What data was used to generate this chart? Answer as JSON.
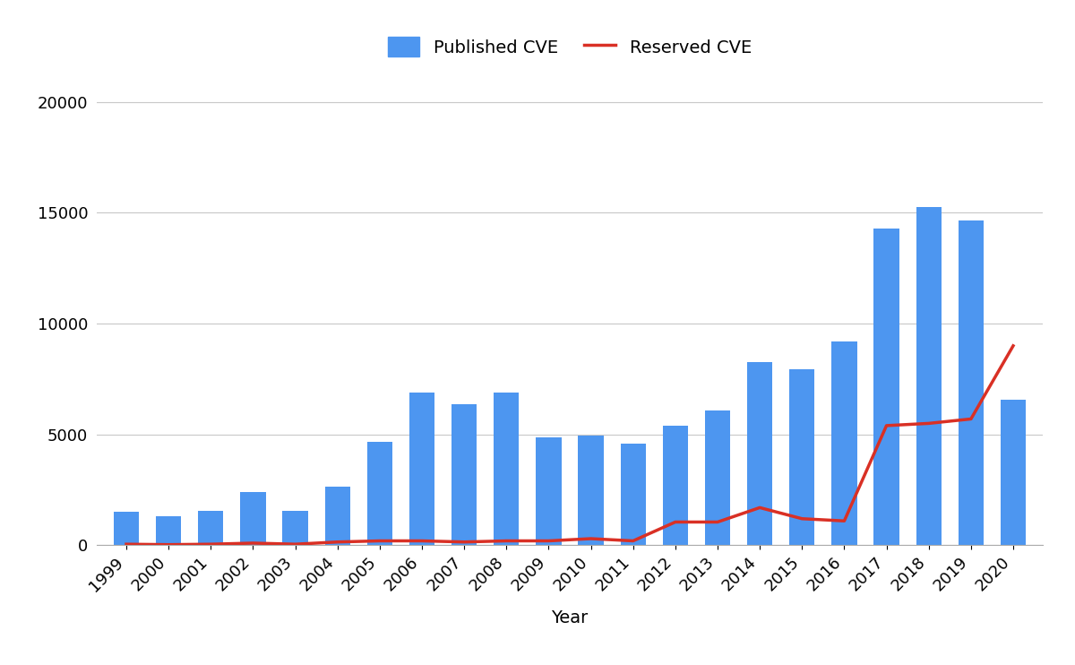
{
  "years": [
    1999,
    2000,
    2001,
    2002,
    2003,
    2004,
    2005,
    2006,
    2007,
    2008,
    2009,
    2010,
    2011,
    2012,
    2013,
    2014,
    2015,
    2016,
    2017,
    2018,
    2019,
    2020
  ],
  "published_cve": [
    1500,
    1300,
    1550,
    2400,
    1550,
    2650,
    4650,
    6900,
    6350,
    6900,
    4850,
    4950,
    4600,
    5400,
    6100,
    8250,
    7950,
    9200,
    14300,
    15250,
    14650,
    6550
  ],
  "reserved_cve": [
    50,
    30,
    50,
    100,
    50,
    150,
    200,
    200,
    150,
    200,
    200,
    300,
    200,
    1050,
    1050,
    1700,
    1200,
    1100,
    5400,
    5500,
    5700,
    9000
  ],
  "bar_color": "#4d96f0",
  "line_color": "#d93025",
  "xlabel": "Year",
  "ylabel": "",
  "ylim": [
    0,
    21000
  ],
  "yticks": [
    0,
    5000,
    10000,
    15000,
    20000
  ],
  "legend_labels": [
    "Published CVE",
    "Reserved CVE"
  ],
  "background_color": "#ffffff",
  "grid_color": "#c8c8c8",
  "legend_fontsize": 14,
  "axis_label_fontsize": 14,
  "tick_fontsize": 13
}
